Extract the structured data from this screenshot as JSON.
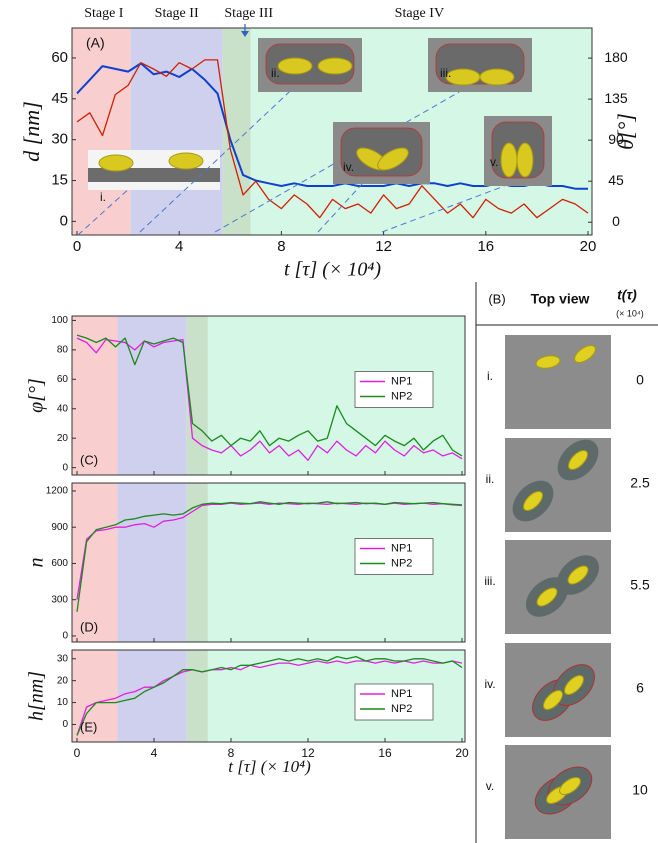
{
  "chart_data": [
    {
      "type": "line",
      "panel_label": "(A)",
      "xlabel": "t [τ] (× 10⁴)",
      "ylabel": "d [nm]",
      "y2label": "θ[°]",
      "ylabel_color": "#1040d0",
      "y2label_color": "#d02000",
      "stages": [
        {
          "name": "Stage I",
          "start": 0,
          "end": 2.1,
          "color": "#f8cece"
        },
        {
          "name": "Stage II",
          "start": 2.1,
          "end": 5.7,
          "color": "#cfcfee"
        },
        {
          "name": "Stage III",
          "start": 5.7,
          "end": 6.8,
          "color": "#c9e0c9"
        },
        {
          "name": "Stage IV",
          "start": 6.8,
          "end": 20,
          "color": "#d4f7e6"
        }
      ],
      "inset_labels": [
        "i.",
        "ii.",
        "iii.",
        "iv.",
        "v."
      ],
      "x": [
        0,
        0.5,
        1,
        1.5,
        2,
        2.5,
        3,
        3.5,
        4,
        4.5,
        5,
        5.5,
        6,
        6.5,
        7,
        7.5,
        8,
        8.5,
        9,
        9.5,
        10,
        10.5,
        11,
        11.5,
        12,
        12.5,
        13,
        13.5,
        14,
        14.5,
        15,
        15.5,
        16,
        16.5,
        17,
        17.5,
        18,
        18.5,
        19,
        19.5,
        20
      ],
      "series": [
        {
          "color": "#1040d0",
          "values": [
            47,
            52,
            57,
            56,
            55,
            58,
            54,
            55,
            53,
            56,
            52,
            47,
            30,
            17,
            15,
            14,
            13,
            14,
            13,
            13,
            13,
            14,
            13,
            13,
            13,
            14,
            13,
            14,
            14,
            13,
            14,
            13,
            13,
            14,
            13,
            13,
            14,
            13,
            13,
            12,
            12
          ]
        },
        {
          "color": "#d02000",
          "axis": "y2",
          "values": [
            110,
            120,
            95,
            140,
            150,
            175,
            168,
            160,
            175,
            168,
            178,
            178,
            80,
            30,
            45,
            25,
            15,
            30,
            20,
            5,
            25,
            15,
            20,
            10,
            30,
            15,
            20,
            40,
            25,
            10,
            20,
            5,
            25,
            15,
            10,
            20,
            5,
            15,
            25,
            20,
            10
          ]
        }
      ],
      "xlim": [
        0,
        20
      ],
      "ylim": [
        -5,
        71
      ],
      "y2lim": [
        -14,
        213
      ],
      "xticks": [
        0,
        4,
        8,
        12,
        16,
        20
      ],
      "yticks": [
        0,
        15,
        30,
        45,
        60
      ],
      "y2ticks": [
        0,
        45,
        90,
        135,
        180
      ]
    },
    {
      "type": "line",
      "panel_label": "(C)",
      "ylabel": "φ[°]",
      "stages": [
        {
          "start": 0,
          "end": 2.1,
          "color": "#f8cece"
        },
        {
          "start": 2.1,
          "end": 5.7,
          "color": "#cfcfee"
        },
        {
          "start": 5.7,
          "end": 6.8,
          "color": "#c9e0c9"
        },
        {
          "start": 6.8,
          "end": 20,
          "color": "#d4f7e6"
        }
      ],
      "x": [
        0,
        0.5,
        1,
        1.5,
        2,
        2.5,
        3,
        3.5,
        4,
        4.5,
        5,
        5.5,
        6,
        6.5,
        7,
        7.5,
        8,
        8.5,
        9,
        9.5,
        10,
        10.5,
        11,
        11.5,
        12,
        12.5,
        13,
        13.5,
        14,
        14.5,
        15,
        15.5,
        16,
        16.5,
        17,
        17.5,
        18,
        18.5,
        19,
        19.5,
        20
      ],
      "series": [
        {
          "name": "NP1",
          "color": "#e020e0",
          "values": [
            88,
            85,
            78,
            87,
            86,
            85,
            80,
            86,
            82,
            85,
            86,
            87,
            20,
            15,
            12,
            10,
            15,
            8,
            12,
            18,
            10,
            15,
            8,
            12,
            5,
            15,
            10,
            18,
            12,
            8,
            15,
            10,
            18,
            12,
            8,
            15,
            10,
            12,
            8,
            10,
            6
          ]
        },
        {
          "name": "NP2",
          "color": "#1a8a1a",
          "values": [
            90,
            88,
            85,
            88,
            82,
            88,
            70,
            86,
            84,
            86,
            88,
            85,
            30,
            25,
            18,
            22,
            15,
            20,
            18,
            25,
            15,
            20,
            18,
            22,
            25,
            18,
            20,
            42,
            30,
            25,
            20,
            15,
            22,
            18,
            15,
            20,
            12,
            18,
            22,
            12,
            8
          ]
        }
      ],
      "xlim": [
        0,
        20
      ],
      "ylim": [
        -5,
        103
      ],
      "xticks": [
        0,
        4,
        8,
        12,
        16,
        20
      ],
      "yticks": [
        0,
        20,
        40,
        60,
        80,
        100
      ]
    },
    {
      "type": "line",
      "panel_label": "(D)",
      "ylabel": "n",
      "stages": [
        {
          "start": 0,
          "end": 2.1,
          "color": "#f8cece"
        },
        {
          "start": 2.1,
          "end": 5.7,
          "color": "#cfcfee"
        },
        {
          "start": 5.7,
          "end": 6.8,
          "color": "#c9e0c9"
        },
        {
          "start": 6.8,
          "end": 20,
          "color": "#d4f7e6"
        }
      ],
      "x": [
        0,
        0.5,
        1,
        1.5,
        2,
        2.5,
        3,
        3.5,
        4,
        4.5,
        5,
        5.5,
        6,
        6.5,
        7,
        7.5,
        8,
        8.5,
        9,
        9.5,
        10,
        10.5,
        11,
        11.5,
        12,
        12.5,
        13,
        13.5,
        14,
        14.5,
        15,
        15.5,
        16,
        16.5,
        17,
        17.5,
        18,
        18.5,
        19,
        19.5,
        20
      ],
      "series": [
        {
          "name": "NP1",
          "color": "#e020e0",
          "values": [
            300,
            800,
            870,
            880,
            900,
            900,
            920,
            930,
            900,
            950,
            960,
            980,
            1030,
            1080,
            1090,
            1090,
            1100,
            1090,
            1095,
            1100,
            1090,
            1100,
            1095,
            1090,
            1100,
            1095,
            1090,
            1100,
            1095,
            1090,
            1100,
            1095,
            1090,
            1100,
            1090,
            1095,
            1100,
            1090,
            1095,
            1085,
            1080
          ]
        },
        {
          "name": "NP2",
          "color": "#1a8a1a",
          "values": [
            200,
            780,
            880,
            900,
            920,
            960,
            970,
            990,
            1000,
            1010,
            1000,
            1010,
            1060,
            1090,
            1100,
            1095,
            1105,
            1100,
            1095,
            1110,
            1100,
            1090,
            1105,
            1100,
            1095,
            1100,
            1110,
            1095,
            1100,
            1105,
            1095,
            1100,
            1090,
            1105,
            1100,
            1095,
            1100,
            1105,
            1095,
            1090,
            1085
          ]
        }
      ],
      "xlim": [
        0,
        20
      ],
      "ylim": [
        -50,
        1266
      ],
      "xticks": [
        0,
        4,
        8,
        12,
        16,
        20
      ],
      "yticks": [
        0,
        300,
        600,
        900,
        1200
      ]
    },
    {
      "type": "line",
      "panel_label": "(E)",
      "ylabel": "h[nm]",
      "xlabel": "t [τ] (× 10⁴)",
      "stages": [
        {
          "start": 0,
          "end": 2.1,
          "color": "#f8cece"
        },
        {
          "start": 2.1,
          "end": 5.7,
          "color": "#cfcfee"
        },
        {
          "start": 5.7,
          "end": 6.8,
          "color": "#c9e0c9"
        },
        {
          "start": 6.8,
          "end": 20,
          "color": "#d4f7e6"
        }
      ],
      "x": [
        0,
        0.5,
        1,
        1.5,
        2,
        2.5,
        3,
        3.5,
        4,
        4.5,
        5,
        5.5,
        6,
        6.5,
        7,
        7.5,
        8,
        8.5,
        9,
        9.5,
        10,
        10.5,
        11,
        11.5,
        12,
        12.5,
        13,
        13.5,
        14,
        14.5,
        15,
        15.5,
        16,
        16.5,
        17,
        17.5,
        18,
        18.5,
        19,
        19.5,
        20
      ],
      "series": [
        {
          "name": "NP1",
          "color": "#e020e0",
          "values": [
            -5,
            8,
            10,
            11,
            12,
            14,
            15,
            17,
            17,
            20,
            22,
            24,
            25,
            24,
            25,
            25,
            26,
            25,
            27,
            26,
            27,
            28,
            28,
            27,
            28,
            29,
            28,
            29,
            28,
            29,
            29,
            28,
            29,
            28,
            29,
            28,
            29,
            28,
            28,
            29,
            28
          ]
        },
        {
          "name": "NP2",
          "color": "#1a8a1a",
          "values": [
            -5,
            5,
            10,
            10,
            10,
            11,
            12,
            15,
            17,
            19,
            22,
            25,
            25,
            24,
            25,
            26,
            25,
            27,
            27,
            28,
            29,
            30,
            29,
            30,
            29,
            30,
            29,
            31,
            30,
            31,
            29,
            30,
            30,
            29,
            29,
            30,
            30,
            29,
            28,
            29,
            26
          ]
        }
      ],
      "xlim": [
        0,
        20
      ],
      "ylim": [
        -8,
        34
      ],
      "xticks": [
        0,
        4,
        8,
        12,
        16,
        20
      ],
      "yticks": [
        0,
        10,
        20,
        30
      ]
    }
  ],
  "top_view_panel": {
    "label": "(B)",
    "header": "Top view",
    "time_header": "t(τ)",
    "time_unit": "(× 10⁴)",
    "rows": [
      {
        "label": "i.",
        "time": "0"
      },
      {
        "label": "ii.",
        "time": "2.5"
      },
      {
        "label": "iii.",
        "time": "5.5"
      },
      {
        "label": "iv.",
        "time": "6"
      },
      {
        "label": "v.",
        "time": "10"
      }
    ]
  }
}
